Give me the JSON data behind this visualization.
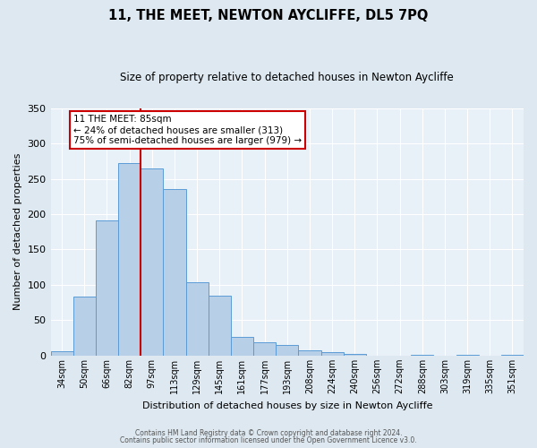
{
  "title": "11, THE MEET, NEWTON AYCLIFFE, DL5 7PQ",
  "subtitle": "Size of property relative to detached houses in Newton Aycliffe",
  "xlabel": "Distribution of detached houses by size in Newton Aycliffe",
  "ylabel": "Number of detached properties",
  "bar_labels": [
    "34sqm",
    "50sqm",
    "66sqm",
    "82sqm",
    "97sqm",
    "113sqm",
    "129sqm",
    "145sqm",
    "161sqm",
    "177sqm",
    "193sqm",
    "208sqm",
    "224sqm",
    "240sqm",
    "256sqm",
    "272sqm",
    "288sqm",
    "303sqm",
    "319sqm",
    "335sqm",
    "351sqm"
  ],
  "bar_values": [
    6,
    84,
    191,
    272,
    265,
    236,
    104,
    85,
    27,
    19,
    15,
    7,
    5,
    3,
    0,
    0,
    1,
    0,
    1,
    0,
    1
  ],
  "bar_color": "#b8cfe8",
  "bar_edge_color": "#5b9bd5",
  "vline_color": "#cc0000",
  "vline_position": 3.5,
  "annotation_title": "11 THE MEET: 85sqm",
  "annotation_line1": "← 24% of detached houses are smaller (313)",
  "annotation_line2": "75% of semi-detached houses are larger (979) →",
  "annotation_box_color": "#cc0000",
  "ylim": [
    0,
    350
  ],
  "yticks": [
    0,
    50,
    100,
    150,
    200,
    250,
    300,
    350
  ],
  "footer1": "Contains HM Land Registry data © Crown copyright and database right 2024.",
  "footer2": "Contains public sector information licensed under the Open Government Licence v3.0.",
  "bg_color": "#dde8f0",
  "plot_bg_color": "#e8f0f8",
  "grid_color": "#ffffff",
  "title_fontsize": 10.5,
  "subtitle_fontsize": 8.5
}
